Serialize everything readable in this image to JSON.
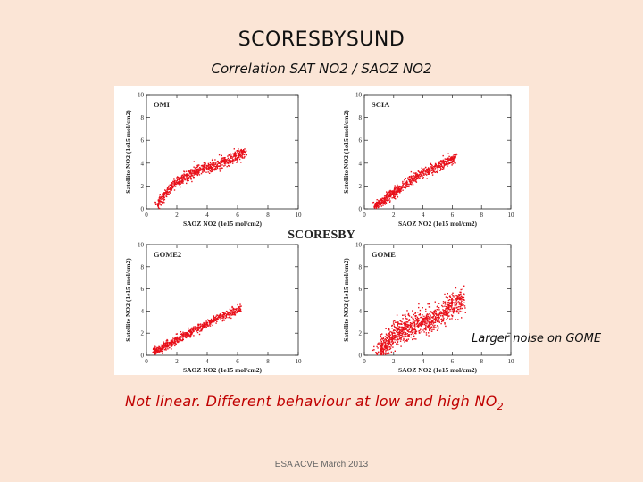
{
  "slide": {
    "title": "SCORESBYSUND",
    "subtitle": "Correlation SAT NO2 / SAOZ NO2",
    "figure_title": "SCORESBY",
    "note": "Larger noise on GOME",
    "conclusion": "Not linear. Different behaviour at low and high NO",
    "conclusion_sub": "2",
    "footer": "ESA ACVE March 2013"
  },
  "colors": {
    "points": "#e8101a",
    "background": "#fbe5d6",
    "conclusion": "#c00000"
  },
  "chart_data": [
    {
      "type": "scatter",
      "panel": "OMI",
      "xlabel": "SAOZ NO2 (1e15 mol/cm2)",
      "ylabel": "Satellite NO2 (1e15 mol/cm2)",
      "xlim": [
        0,
        10
      ],
      "ylim": [
        0,
        10
      ],
      "xticks": [
        0,
        2,
        4,
        6,
        8,
        10
      ],
      "yticks": [
        0,
        2,
        4,
        6,
        8,
        10
      ],
      "trend": [
        [
          0.7,
          0.3
        ],
        [
          1.5,
          1.8
        ],
        [
          2.5,
          2.8
        ],
        [
          3.5,
          3.4
        ],
        [
          4.5,
          3.8
        ],
        [
          5.5,
          4.3
        ],
        [
          6.5,
          5.0
        ]
      ],
      "spread": 0.25,
      "n_points": 700
    },
    {
      "type": "scatter",
      "panel": "SCIA",
      "xlabel": "SAOZ NO2 (1e15 mol/cm2)",
      "ylabel": "Satellite NO2 (1e15 mol/cm2)",
      "xlim": [
        0,
        10
      ],
      "ylim": [
        0,
        10
      ],
      "xticks": [
        0,
        2,
        4,
        6,
        8,
        10
      ],
      "yticks": [
        0,
        2,
        4,
        6,
        8,
        10
      ],
      "trend": [
        [
          0.7,
          0.2
        ],
        [
          1.5,
          0.9
        ],
        [
          2.5,
          1.8
        ],
        [
          3.5,
          2.8
        ],
        [
          4.5,
          3.4
        ],
        [
          5.5,
          4.0
        ],
        [
          6.3,
          4.6
        ]
      ],
      "spread": 0.22,
      "n_points": 700
    },
    {
      "type": "scatter",
      "panel": "GOME2",
      "xlabel": "SAOZ NO2 (1e15 mol/cm2)",
      "ylabel": "Satellite NO2 (1e15 mol/cm2)",
      "xlim": [
        0,
        10
      ],
      "ylim": [
        0,
        10
      ],
      "xticks": [
        0,
        2,
        4,
        6,
        8,
        10
      ],
      "yticks": [
        0,
        2,
        4,
        6,
        8,
        10
      ],
      "trend": [
        [
          0.5,
          0.3
        ],
        [
          1.5,
          1.0
        ],
        [
          2.5,
          1.8
        ],
        [
          3.5,
          2.5
        ],
        [
          4.5,
          3.2
        ],
        [
          5.5,
          3.8
        ],
        [
          6.2,
          4.3
        ]
      ],
      "spread": 0.2,
      "n_points": 650
    },
    {
      "type": "scatter",
      "panel": "GOME",
      "xlabel": "SAOZ NO2 (1e15 mol/cm2)",
      "ylabel": "Satellite NO2 (1e15 mol/cm2)",
      "xlim": [
        0,
        10
      ],
      "ylim": [
        0,
        10
      ],
      "xticks": [
        0,
        2,
        4,
        6,
        8,
        10
      ],
      "yticks": [
        0,
        2,
        4,
        6,
        8,
        10
      ],
      "trend": [
        [
          1.0,
          0.3
        ],
        [
          2.0,
          1.8
        ],
        [
          3.0,
          2.6
        ],
        [
          4.0,
          2.9
        ],
        [
          5.0,
          3.5
        ],
        [
          6.0,
          4.5
        ],
        [
          6.8,
          5.0
        ]
      ],
      "spread": 0.55,
      "n_points": 1000
    }
  ]
}
